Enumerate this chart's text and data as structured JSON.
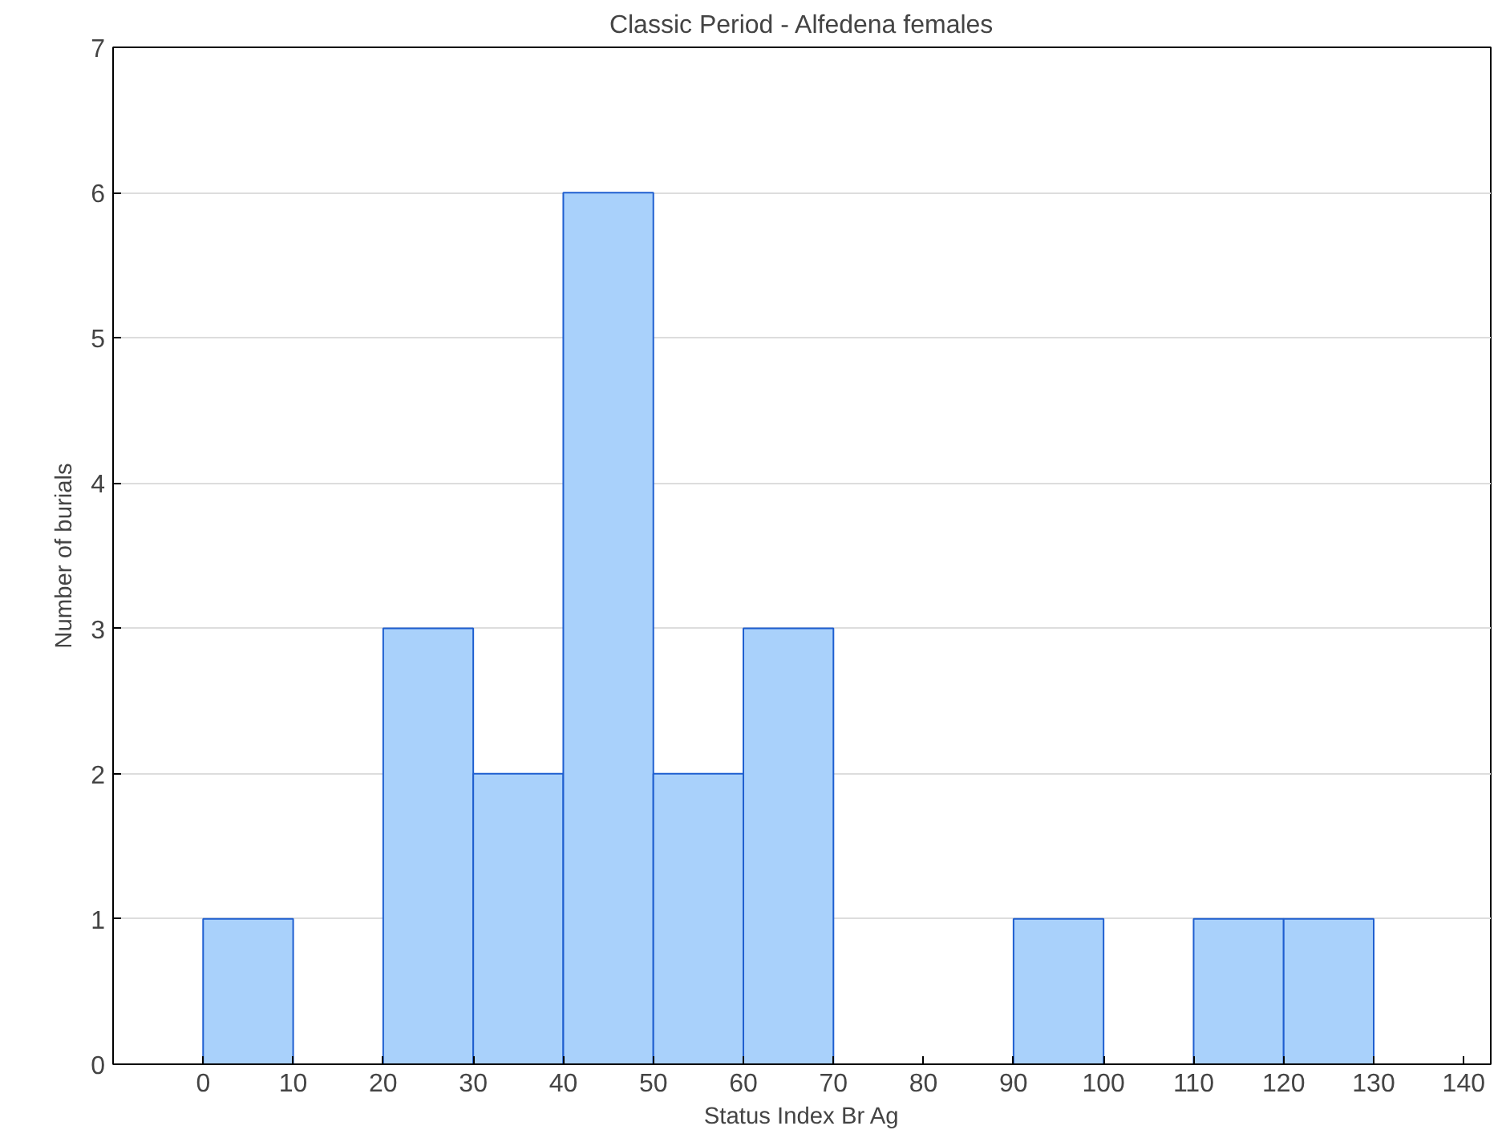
{
  "chart_data": {
    "type": "histogram",
    "title": "Classic Period - Alfedena females",
    "xlabel": "Status Index Br Ag",
    "ylabel": "Number of burials",
    "bins": [
      0,
      10,
      20,
      30,
      40,
      50,
      60,
      70,
      80,
      90,
      100,
      110,
      120,
      130
    ],
    "values": [
      1,
      0,
      3,
      2,
      6,
      2,
      3,
      0,
      0,
      1,
      0,
      1,
      1
    ],
    "color": "#a9d1fb",
    "xlim": [
      -10,
      143
    ],
    "ylim": [
      0,
      7
    ],
    "xticks": [
      0,
      10,
      20,
      30,
      40,
      50,
      60,
      70,
      80,
      90,
      100,
      110,
      120,
      130,
      140
    ],
    "yticks": [
      0,
      1,
      2,
      3,
      4,
      5,
      6,
      7
    ],
    "grid": "y"
  }
}
